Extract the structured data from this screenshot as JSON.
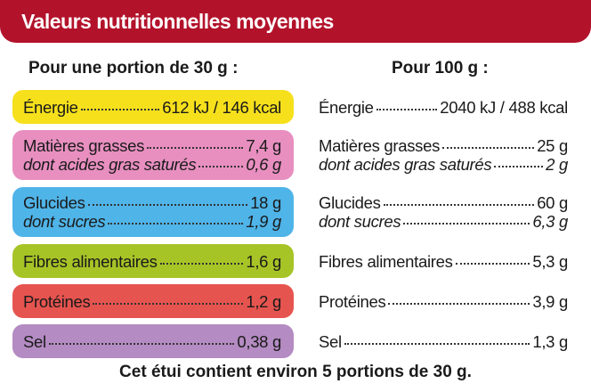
{
  "header": {
    "title": "Valeurs nutritionnelles moyennes"
  },
  "columns": {
    "portion": "Pour une portion de 30 g :",
    "per_100g": "Pour 100 g :"
  },
  "groups": [
    {
      "color": "#f6e01c",
      "items": [
        {
          "label": "Énergie",
          "portion": "612 kJ / 146 kcal",
          "per_100g": "2040 kJ / 488 kcal"
        }
      ]
    },
    {
      "color": "#e88fc0",
      "items": [
        {
          "label": "Matières grasses",
          "portion": "7,4 g",
          "per_100g": "25 g"
        },
        {
          "label": "dont acides gras saturés",
          "portion": "0,6 g",
          "per_100g": "2 g"
        }
      ]
    },
    {
      "color": "#4fb4e8",
      "items": [
        {
          "label": "Glucides",
          "portion": "18 g",
          "per_100g": "60 g"
        },
        {
          "label": "dont sucres",
          "portion": "1,9 g",
          "per_100g": "6,3 g"
        }
      ]
    },
    {
      "color": "#a6c426",
      "items": [
        {
          "label": "Fibres alimentaires",
          "portion": "1,6 g",
          "per_100g": "5,3 g"
        }
      ]
    },
    {
      "color": "#e6544f",
      "items": [
        {
          "label": "Protéines",
          "portion": "1,2 g",
          "per_100g": "3,9 g"
        }
      ]
    },
    {
      "color": "#b48bc2",
      "items": [
        {
          "label": "Sel",
          "portion": "0,38 g",
          "per_100g": "1,3 g"
        }
      ]
    }
  ],
  "footer": "Cet étui contient environ 5 portions de 30 g."
}
